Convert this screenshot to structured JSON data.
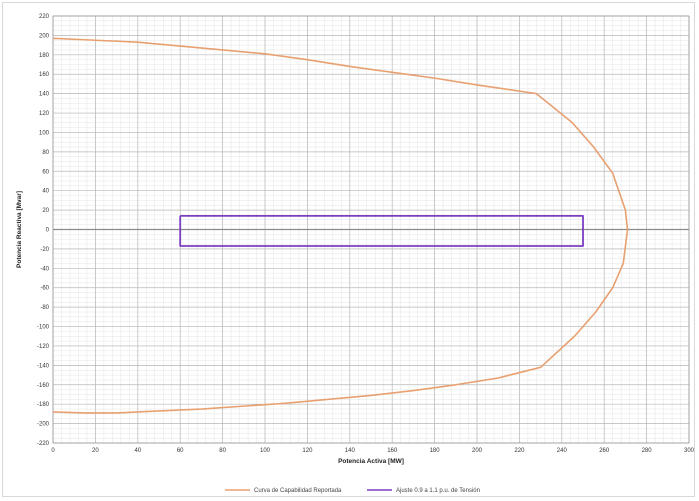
{
  "chart_data": {
    "type": "line",
    "title": "",
    "xlabel": "Potencia Activa [MW]",
    "ylabel": "Potencia Reactiva [Mvar]",
    "xlim": [
      0,
      300
    ],
    "ylim": [
      -220,
      220
    ],
    "x_major_step": 20,
    "y_major_step": 20,
    "minor_grid": true,
    "legend_position": "bottom-center",
    "series": [
      {
        "name": "Curva de Capabilidad Reportada",
        "color": "#e8a070",
        "points": [
          [
            0,
            197
          ],
          [
            20,
            195
          ],
          [
            40,
            193
          ],
          [
            60,
            189
          ],
          [
            80,
            185
          ],
          [
            100,
            181
          ],
          [
            120,
            175
          ],
          [
            140,
            168
          ],
          [
            160,
            162
          ],
          [
            180,
            156
          ],
          [
            200,
            149
          ],
          [
            228,
            140
          ],
          [
            245,
            110
          ],
          [
            255,
            85
          ],
          [
            264,
            58
          ],
          [
            270,
            20
          ],
          [
            271,
            0
          ],
          [
            269,
            -35
          ],
          [
            264,
            -60
          ],
          [
            256,
            -85
          ],
          [
            246,
            -110
          ],
          [
            230,
            -142
          ],
          [
            210,
            -153
          ],
          [
            190,
            -160
          ],
          [
            170,
            -166
          ],
          [
            150,
            -171
          ],
          [
            130,
            -175
          ],
          [
            110,
            -179
          ],
          [
            90,
            -182
          ],
          [
            70,
            -185
          ],
          [
            50,
            -187
          ],
          [
            30,
            -189
          ],
          [
            15,
            -189
          ],
          [
            0,
            -188
          ]
        ]
      },
      {
        "name": "Ajuste 0.9 a 1.1 p.u. de Tensión",
        "color": "#7a3fc0",
        "points": [
          [
            60,
            14
          ],
          [
            250,
            14
          ],
          [
            250,
            -17
          ],
          [
            60,
            -17
          ],
          [
            60,
            14
          ]
        ]
      }
    ]
  }
}
